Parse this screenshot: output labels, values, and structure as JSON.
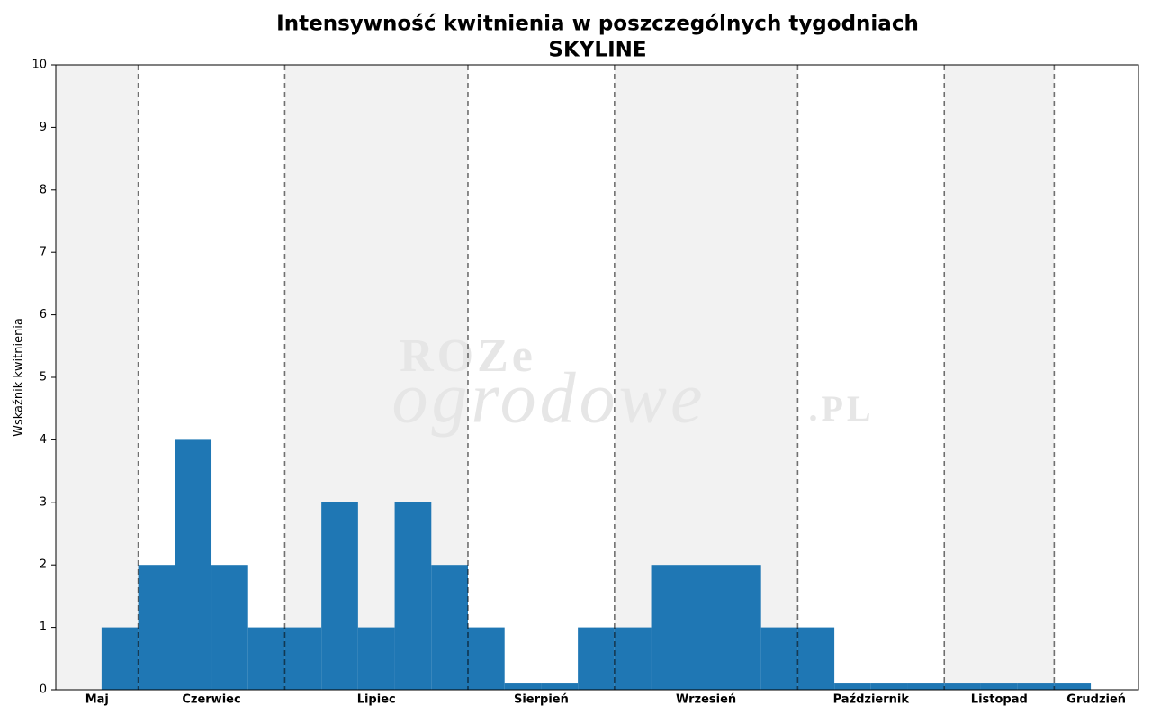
{
  "chart_data": {
    "type": "histogram",
    "title": [
      "Intensywność kwitnienia w poszczególnych tygodniach",
      "SKYLINE"
    ],
    "ylabel": "Wskaźnik kwitnienia",
    "bins": [
      0,
      1,
      2,
      3,
      4,
      5,
      6,
      7,
      8,
      9,
      10,
      11,
      12,
      13,
      14,
      15,
      16,
      17,
      18,
      19,
      20,
      21,
      22,
      23,
      24,
      25,
      26,
      27
    ],
    "values": [
      1,
      2,
      4,
      2,
      1,
      1,
      3,
      1,
      3,
      2,
      1,
      0.1,
      0.1,
      1,
      1,
      2,
      2,
      2,
      1,
      1,
      0.1,
      0.1,
      0.1,
      0.1,
      0.1,
      0.1,
      0.1
    ],
    "color": "#1f77b4",
    "xlim": [
      -1.25,
      28.3
    ],
    "ylim": [
      0,
      10
    ],
    "yticks": [
      0,
      1,
      2,
      3,
      4,
      5,
      6,
      7,
      8,
      9,
      10
    ],
    "month_boundaries": [
      1,
      5,
      10,
      14,
      19,
      23,
      26
    ],
    "month_labels": [
      "Maj",
      "Czerwiec",
      "Lipiec",
      "Sierpień",
      "Wrzesień",
      "Październik",
      "Listopad",
      "Grudzień"
    ],
    "shade_color": "#f2f2f2",
    "watermark": [
      "ROZe",
      "ogrodowe",
      ".PL"
    ]
  }
}
